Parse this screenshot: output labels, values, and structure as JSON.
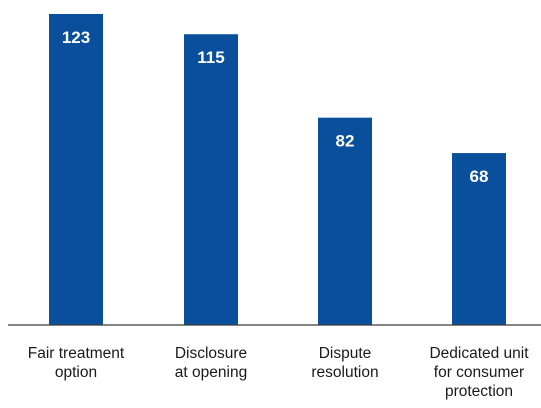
{
  "chart_data": {
    "type": "bar",
    "title": "",
    "xlabel": "",
    "ylabel": "",
    "categories": [
      [
        "Fair treatment",
        "option"
      ],
      [
        "Disclosure",
        "at opening"
      ],
      [
        "Dispute",
        "resolution"
      ],
      [
        "Dedicated unit",
        "for consumer",
        "protection"
      ]
    ],
    "values": [
      123,
      115,
      82,
      68
    ],
    "data_labels": [
      "123",
      "115",
      "82",
      "68"
    ],
    "ylim": [
      0,
      130
    ],
    "grid": false,
    "legend": "none",
    "colors": {
      "bar": "#0a4f9c",
      "value_text": "#ffffff",
      "axis": "#3a3a3a",
      "label_text": "#1a1a1a"
    }
  }
}
